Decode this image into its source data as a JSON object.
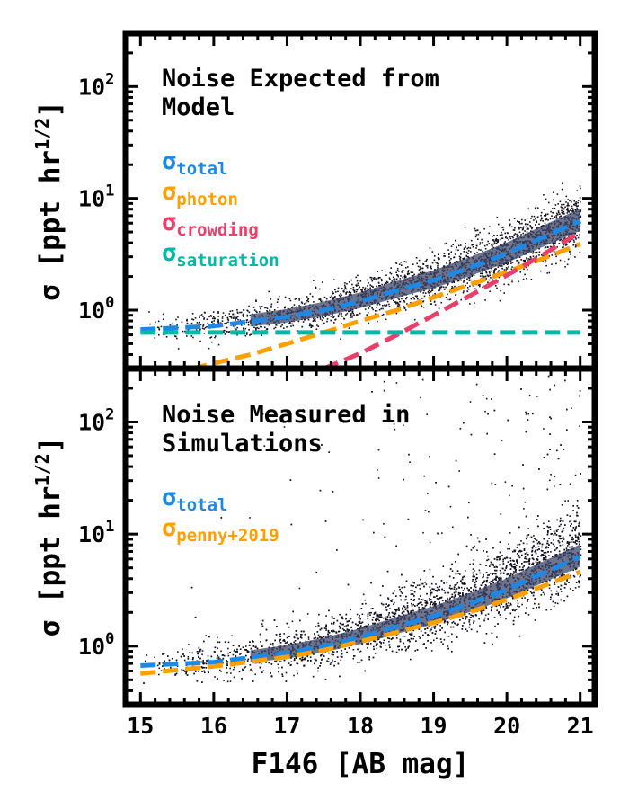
{
  "figure": {
    "xlabel": "F146 [AB mag]",
    "ylabel": "σ [ppt hr^{1/2}]",
    "ylabel_base": "σ [ppt hr",
    "ylabel_exp": "1/2",
    "ylabel_close": "]"
  },
  "chart_data": [
    {
      "type": "scatter",
      "panel": "top",
      "title": "Noise Expected from Model",
      "title_lines": [
        "Noise Expected from",
        "Model"
      ],
      "xlabel": "F146 [AB mag]",
      "ylabel": "σ [ppt hr^{1/2}]",
      "xlim": [
        14.8,
        21.2
      ],
      "ylim": [
        0.3,
        300
      ],
      "yscale": "log",
      "xticks": [
        15,
        16,
        17,
        18,
        19,
        20,
        21
      ],
      "yticks": [
        {
          "base": "10",
          "exp": "0",
          "value": 1
        },
        {
          "base": "10",
          "exp": "1",
          "value": 10
        },
        {
          "base": "10",
          "exp": "2",
          "value": 100
        }
      ],
      "legend": [
        {
          "symbol": "σ",
          "sub": "total",
          "color": "#1e88e5"
        },
        {
          "symbol": "σ",
          "sub": "photon",
          "color": "#ffa000"
        },
        {
          "symbol": "σ",
          "sub": "crowding",
          "color": "#e8406a"
        },
        {
          "symbol": "σ",
          "sub": "saturation",
          "color": "#00b8a6"
        }
      ],
      "series": [
        {
          "name": "total",
          "style": "dashed",
          "color": "#1e88e5",
          "x": [
            15,
            16,
            17,
            17.5,
            18,
            18.5,
            19,
            19.5,
            20,
            20.5,
            21
          ],
          "y": [
            0.67,
            0.72,
            0.87,
            1.0,
            1.2,
            1.5,
            1.85,
            2.4,
            3.2,
            4.5,
            6.3
          ]
        },
        {
          "name": "photon",
          "style": "dashed",
          "color": "#ffa000",
          "x": [
            15.7,
            16.5,
            17,
            17.5,
            18,
            18.5,
            19,
            19.5,
            20,
            20.5,
            21
          ],
          "y": [
            0.3,
            0.4,
            0.5,
            0.63,
            0.8,
            1.0,
            1.3,
            1.7,
            2.2,
            2.9,
            3.9
          ]
        },
        {
          "name": "crowding",
          "style": "dashed",
          "color": "#e8406a",
          "x": [
            17.5,
            18,
            18.5,
            19,
            19.5,
            20,
            20.5,
            21
          ],
          "y": [
            0.3,
            0.41,
            0.6,
            0.9,
            1.35,
            2.05,
            3.15,
            5.0
          ]
        },
        {
          "name": "saturation",
          "style": "dashed",
          "color": "#00b8a6",
          "x": [
            15,
            21
          ],
          "y": [
            0.63,
            0.63
          ]
        }
      ],
      "scatter": {
        "description_free": true,
        "x_range": [
          15,
          21
        ],
        "spread": 0.1,
        "outlier_fraction": 0.0
      }
    },
    {
      "type": "scatter",
      "panel": "bottom",
      "title": "Noise Measured in Simulations",
      "title_lines": [
        "Noise Measured in",
        "Simulations"
      ],
      "xlabel": "F146 [AB mag]",
      "ylabel": "σ [ppt hr^{1/2}]",
      "xlim": [
        14.8,
        21.2
      ],
      "ylim": [
        0.3,
        300
      ],
      "yscale": "log",
      "xticks": [
        15,
        16,
        17,
        18,
        19,
        20,
        21
      ],
      "yticks": [
        {
          "base": "10",
          "exp": "0",
          "value": 1
        },
        {
          "base": "10",
          "exp": "1",
          "value": 10
        },
        {
          "base": "10",
          "exp": "2",
          "value": 100
        }
      ],
      "legend": [
        {
          "symbol": "σ",
          "sub": "total",
          "color": "#1e88e5"
        },
        {
          "symbol": "σ",
          "sub": "penny+2019",
          "color": "#ffa000"
        }
      ],
      "series": [
        {
          "name": "total",
          "style": "dashed",
          "color": "#1e88e5",
          "x": [
            15,
            16,
            17,
            17.5,
            18,
            18.5,
            19,
            19.5,
            20,
            20.5,
            21
          ],
          "y": [
            0.67,
            0.72,
            0.87,
            1.0,
            1.2,
            1.5,
            1.85,
            2.4,
            3.2,
            4.5,
            6.3
          ]
        },
        {
          "name": "penny+2019",
          "style": "dashed",
          "color": "#ffa000",
          "x": [
            15,
            16,
            17,
            17.5,
            18,
            18.5,
            19,
            19.5,
            20,
            20.5,
            21
          ],
          "y": [
            0.57,
            0.66,
            0.8,
            0.92,
            1.1,
            1.33,
            1.62,
            2.02,
            2.6,
            3.45,
            4.6
          ]
        }
      ]
    }
  ]
}
